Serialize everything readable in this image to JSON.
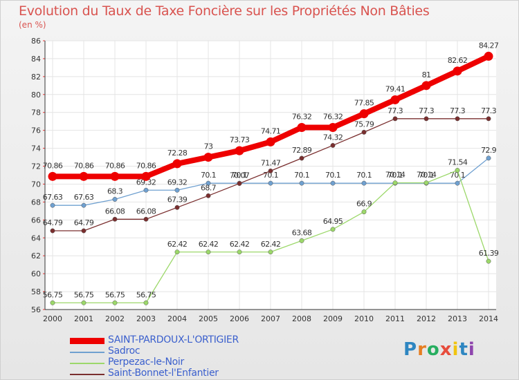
{
  "chart_data": {
    "type": "line",
    "title": "Evolution du Taux de Taxe Foncière sur les Propriétés Non Bâties",
    "ylabel": "(en %)",
    "xlabel": "",
    "ylim": [
      56,
      86
    ],
    "yticks": [
      56,
      58,
      60,
      62,
      64,
      66,
      68,
      70,
      72,
      74,
      76,
      78,
      80,
      82,
      84,
      86
    ],
    "x": [
      "2000",
      "2001",
      "2002",
      "2003",
      "2004",
      "2005",
      "2006",
      "2007",
      "2008",
      "2009",
      "2010",
      "2011",
      "2012",
      "2013",
      "2014"
    ],
    "grid": true,
    "legend_position": "bottom-left",
    "series": [
      {
        "name": "Sadroc",
        "color": "#6fa0d0",
        "values": [
          67.63,
          67.63,
          68.3,
          69.32,
          69.32,
          70.1,
          70.1,
          70.1,
          70.1,
          70.1,
          70.1,
          70.1,
          70.1,
          70.1,
          72.9
        ],
        "labels": [
          "67.63",
          "67.63",
          "68.3",
          "69.32",
          "69.32",
          "70.1",
          "70.1",
          "70.1",
          "70.1",
          "70.1",
          "70.1",
          "70.1",
          "70.1",
          "70.1",
          "72.9"
        ]
      },
      {
        "name": "Perpezac-le-Noir",
        "color": "#9cd86a",
        "values": [
          56.75,
          56.75,
          56.75,
          56.75,
          62.42,
          62.42,
          62.42,
          62.42,
          63.68,
          64.95,
          66.9,
          70.14,
          70.14,
          71.54,
          61.39
        ],
        "labels": [
          "56.75",
          "56.75",
          "56.75",
          "56.75",
          "62.42",
          "62.42",
          "62.42",
          "62.42",
          "63.68",
          "64.95",
          "66.9",
          "70.14",
          "70.14",
          "71.54",
          "61.39"
        ]
      },
      {
        "name": "Saint-Bonnet-l'Enfantier",
        "color": "#7a2e2e",
        "values": [
          64.79,
          64.79,
          66.08,
          66.08,
          67.39,
          68.7,
          70.07,
          71.47,
          72.89,
          74.32,
          75.79,
          77.3,
          77.3,
          77.3,
          77.3
        ],
        "labels": [
          "64.79",
          "64.79",
          "66.08",
          "66.08",
          "67.39",
          "68.7",
          "70.07",
          "71.47",
          "72.89",
          "74.32",
          "75.79",
          "77.3",
          "77.3",
          "77.3",
          "77.3"
        ]
      },
      {
        "name": "SAINT-PARDOUX-L'ORTIGIER",
        "color": "#ee0000",
        "values": [
          70.86,
          70.86,
          70.86,
          70.86,
          72.28,
          73,
          73.73,
          74.71,
          76.32,
          76.32,
          77.85,
          79.41,
          81,
          82.62,
          84.27
        ],
        "labels": [
          "70.86",
          "70.86",
          "70.86",
          "70.86",
          "72.28",
          "73",
          "73.73",
          "74.71",
          "76.32",
          "76.32",
          "77.85",
          "79.41",
          "81",
          "82.62",
          "84.27"
        ]
      }
    ]
  },
  "legend": {
    "items": [
      {
        "name": "SAINT-PARDOUX-L'ORTIGIER",
        "color": "#ee0000"
      },
      {
        "name": "Sadroc",
        "color": "#6fa0d0"
      },
      {
        "name": "Perpezac-le-Noir",
        "color": "#9cd86a"
      },
      {
        "name": "Saint-Bonnet-l'Enfantier",
        "color": "#7a2e2e"
      }
    ]
  },
  "logo": {
    "text": "Proxiti"
  }
}
